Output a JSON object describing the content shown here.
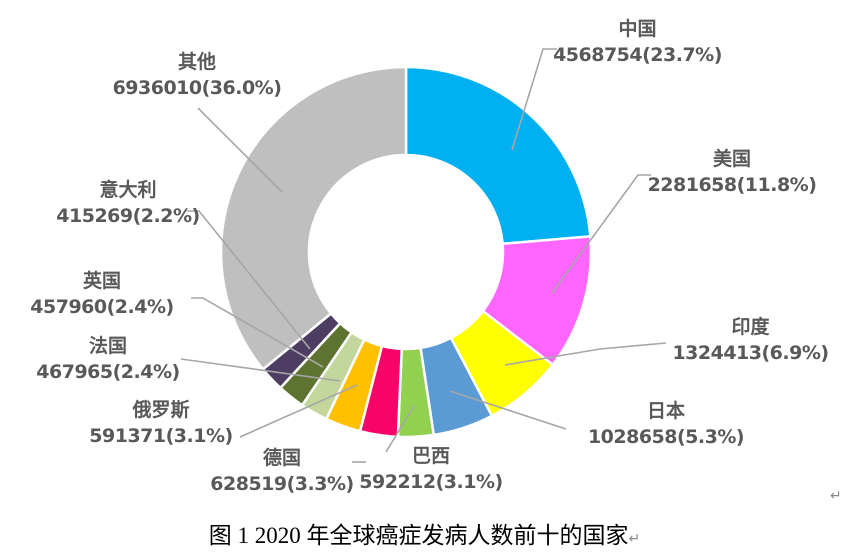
{
  "figure": {
    "caption": "图 1 2020 年全球癌症发病人数前十的国家",
    "paragraph_mark": "↵"
  },
  "style": {
    "background": "#FFFFFF",
    "label_text_color": "#595959",
    "leader_line_color": "#A6A6A6",
    "slice_gap_color": "#FFFFFF",
    "caption_color": "#000000"
  },
  "chart_data": {
    "type": "pie",
    "subtype": "donut",
    "title": "图 1 2020 年全球癌症发病人数前十的国家",
    "legend_position": "none",
    "grid": false,
    "start_angle_deg": 0,
    "direction": "clockwise",
    "hole_ratio": 0.52,
    "label_format": "category newline value(percent), outside with gray leader lines",
    "categories": [
      "中国",
      "美国",
      "印度",
      "日本",
      "巴西",
      "德国",
      "俄罗斯",
      "法国",
      "英国",
      "意大利",
      "其他"
    ],
    "values": [
      4568754,
      2281658,
      1324413,
      1028658,
      592212,
      628519,
      591371,
      467965,
      457960,
      415269,
      6936010
    ],
    "percents": [
      23.7,
      11.8,
      6.9,
      5.3,
      3.1,
      3.3,
      3.1,
      2.4,
      2.4,
      2.2,
      36.0
    ],
    "colors": [
      "#00B0F0",
      "#FF66FF",
      "#FFFF00",
      "#5B9BD5",
      "#92D050",
      "#F7036A",
      "#FFC000",
      "#C3D69B",
      "#5E7330",
      "#4E3D63",
      "#BFBFBF"
    ],
    "keys": [
      "china",
      "usa",
      "india",
      "japan",
      "brazil",
      "germany",
      "russia",
      "france",
      "uk",
      "italy",
      "others"
    ],
    "slices": [
      {
        "label": "中国",
        "value_label": "4568754(23.7%)"
      },
      {
        "label": "美国",
        "value_label": "2281658(11.8%)"
      },
      {
        "label": "印度",
        "value_label": "1324413(6.9%)"
      },
      {
        "label": "日本",
        "value_label": "1028658(5.3%)"
      },
      {
        "label": "巴西",
        "value_label": "592212(3.1%)"
      },
      {
        "label": "德国",
        "value_label": "628519(3.3%)"
      },
      {
        "label": "俄罗斯",
        "value_label": "591371(3.1%)"
      },
      {
        "label": "法国",
        "value_label": "467965(2.4%)"
      },
      {
        "label": "英国",
        "value_label": "457960(2.4%)"
      },
      {
        "label": "意大利",
        "value_label": "415269(2.2%)"
      },
      {
        "label": "其他",
        "value_label": "6936010(36.0%)"
      }
    ]
  }
}
